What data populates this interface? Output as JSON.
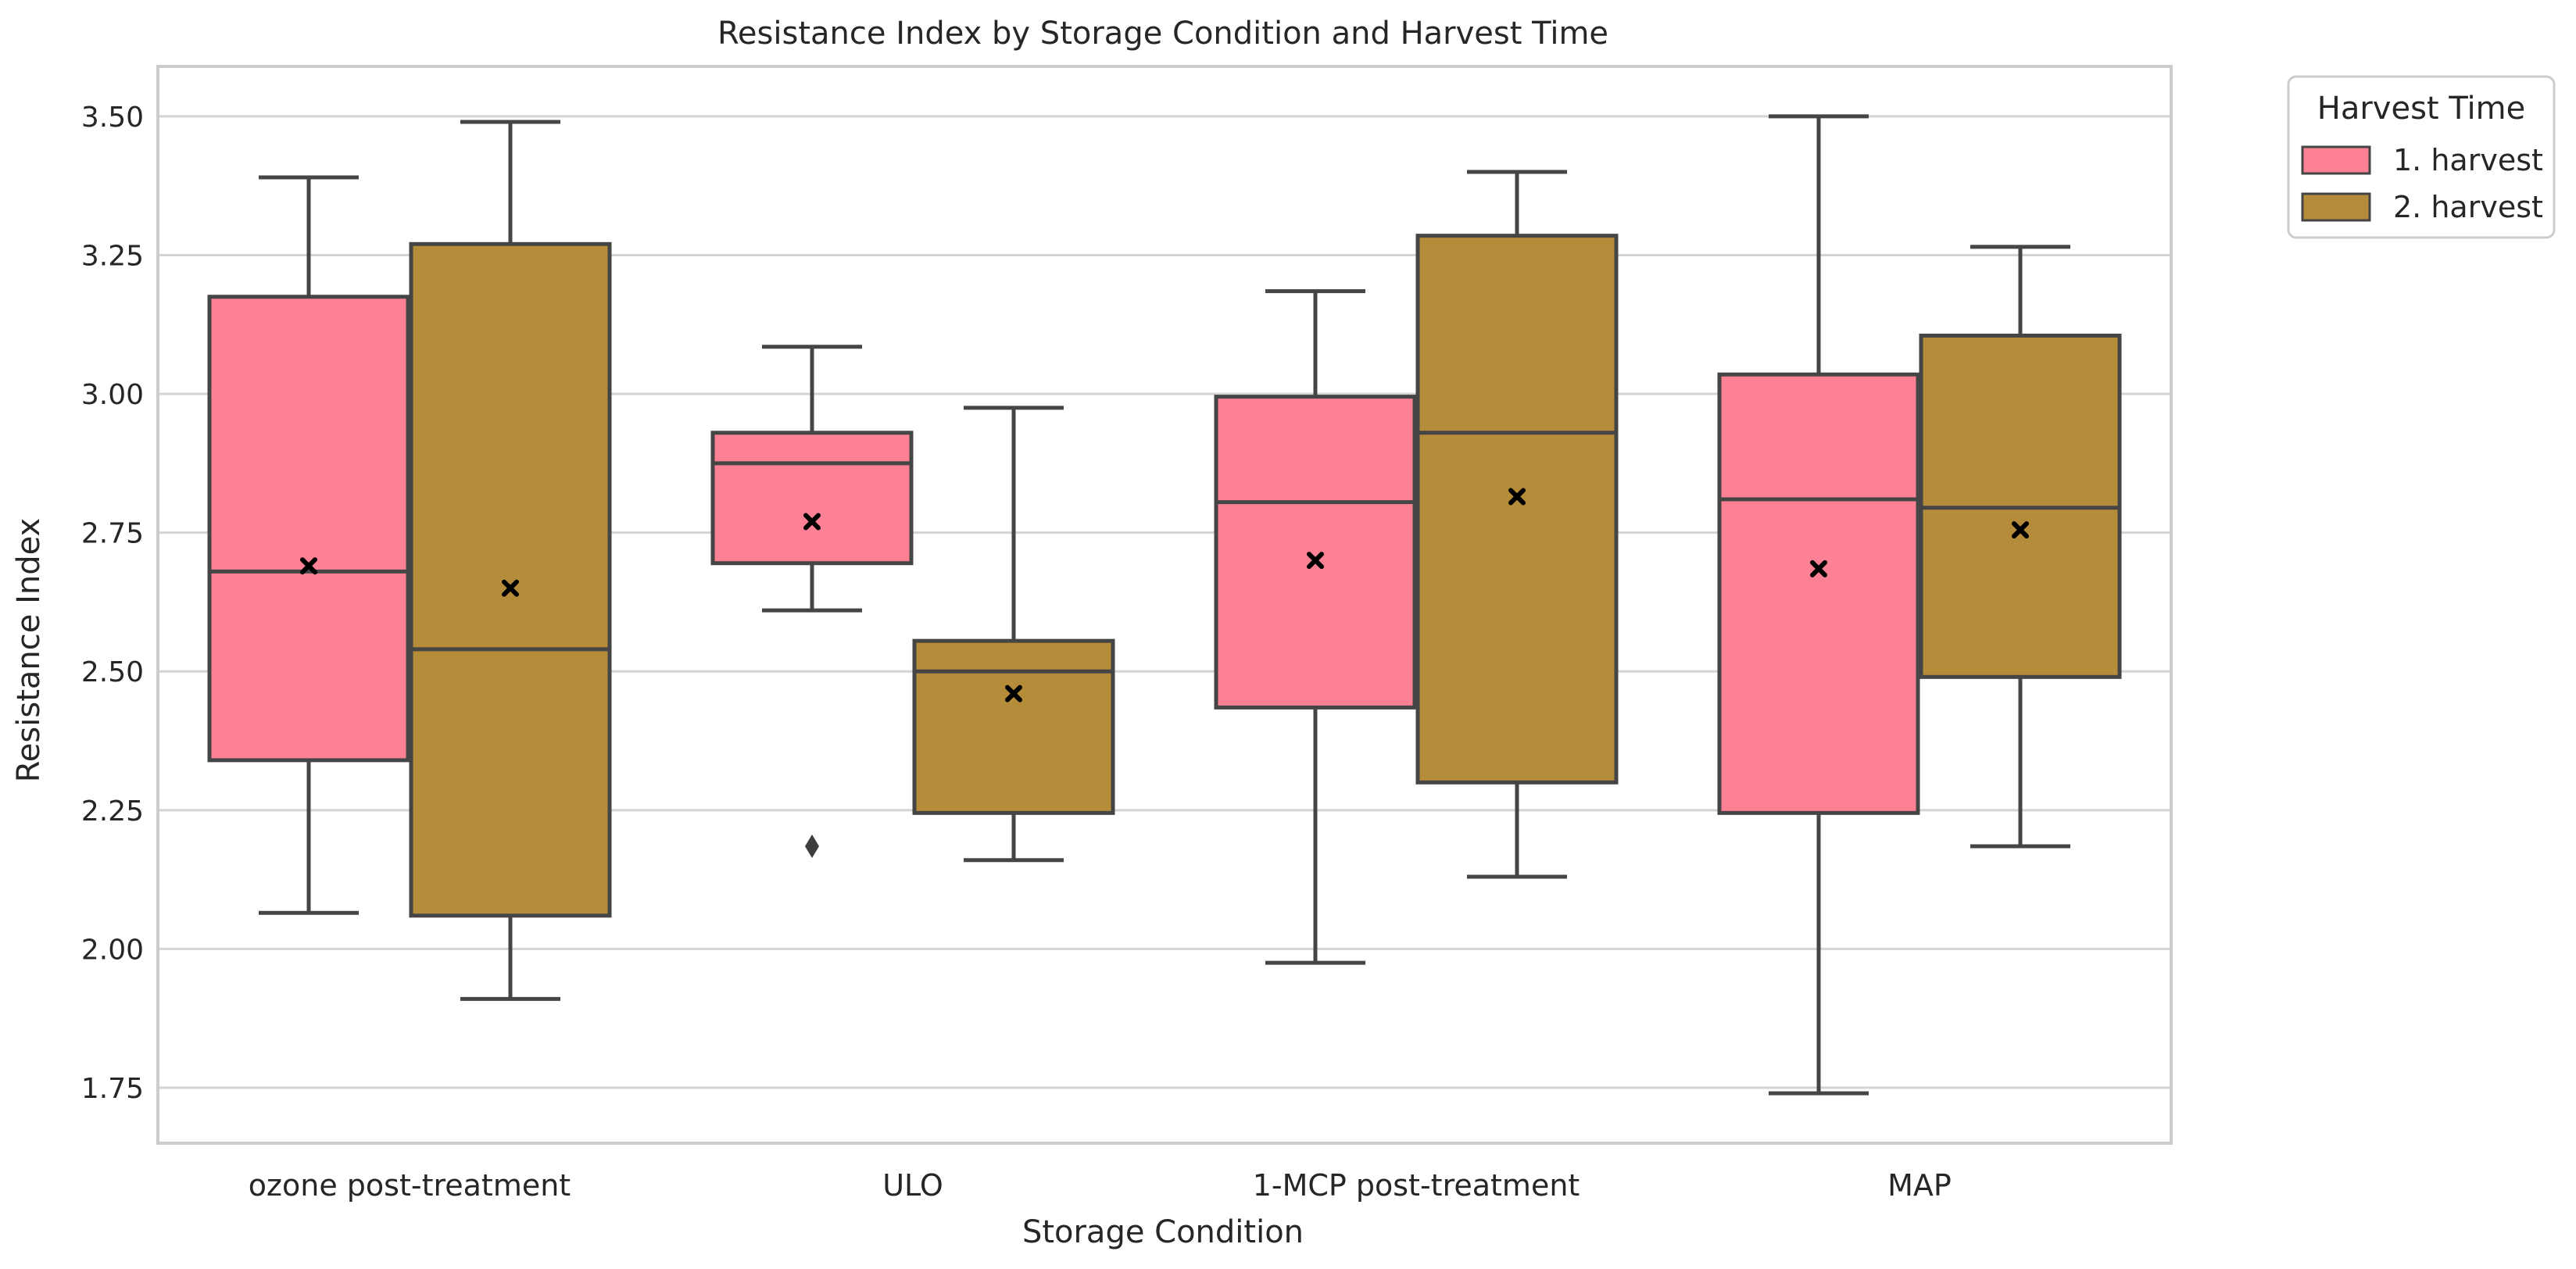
{
  "chart_data": {
    "type": "box",
    "title": "Resistance Index by Storage Condition and Harvest Time",
    "xlabel": "Storage Condition",
    "ylabel": "Resistance Index",
    "ylim": [
      1.65,
      3.59
    ],
    "yticks": [
      1.75,
      2.0,
      2.25,
      2.5,
      2.75,
      3.0,
      3.25,
      3.5
    ],
    "ytick_labels": [
      "1.75",
      "2.00",
      "2.25",
      "2.50",
      "2.75",
      "3.00",
      "3.25",
      "3.50"
    ],
    "grid": true,
    "categories": [
      "ozone post-treatment",
      "ULO",
      "1-MCP post-treatment",
      "MAP"
    ],
    "legend": {
      "title": "Harvest Time",
      "placement": "outside-top-right",
      "entries": [
        "1. harvest",
        "2. harvest"
      ]
    },
    "colors": {
      "1. harvest": "#fd8195",
      "2. harvest": "#b48c3a",
      "edge": "#454545",
      "grid": "#d4d4d4",
      "mean_marker": "#000000"
    },
    "series": [
      {
        "name": "1. harvest",
        "boxes": [
          {
            "category": "ozone post-treatment",
            "whisker_low": 2.065,
            "q1": 2.34,
            "median": 2.68,
            "q3": 3.175,
            "whisker_high": 3.39,
            "mean": 2.69,
            "outliers": []
          },
          {
            "category": "ULO",
            "whisker_low": 2.61,
            "q1": 2.695,
            "median": 2.875,
            "q3": 2.93,
            "whisker_high": 3.085,
            "mean": 2.77,
            "outliers": [
              2.185
            ]
          },
          {
            "category": "1-MCP post-treatment",
            "whisker_low": 1.975,
            "q1": 2.435,
            "median": 2.805,
            "q3": 2.995,
            "whisker_high": 3.185,
            "mean": 2.7,
            "outliers": []
          },
          {
            "category": "MAP",
            "whisker_low": 1.74,
            "q1": 2.245,
            "median": 2.81,
            "q3": 3.035,
            "whisker_high": 3.5,
            "mean": 2.685,
            "outliers": []
          }
        ]
      },
      {
        "name": "2. harvest",
        "boxes": [
          {
            "category": "ozone post-treatment",
            "whisker_low": 1.91,
            "q1": 2.06,
            "median": 2.54,
            "q3": 3.27,
            "whisker_high": 3.49,
            "mean": 2.65,
            "outliers": []
          },
          {
            "category": "ULO",
            "whisker_low": 2.16,
            "q1": 2.245,
            "median": 2.5,
            "q3": 2.555,
            "whisker_high": 2.975,
            "mean": 2.46,
            "outliers": []
          },
          {
            "category": "1-MCP post-treatment",
            "whisker_low": 2.13,
            "q1": 2.3,
            "median": 2.93,
            "q3": 3.285,
            "whisker_high": 3.4,
            "mean": 2.815,
            "outliers": []
          },
          {
            "category": "MAP",
            "whisker_low": 2.185,
            "q1": 2.49,
            "median": 2.795,
            "q3": 3.105,
            "whisker_high": 3.265,
            "mean": 2.755,
            "outliers": []
          }
        ]
      }
    ]
  }
}
